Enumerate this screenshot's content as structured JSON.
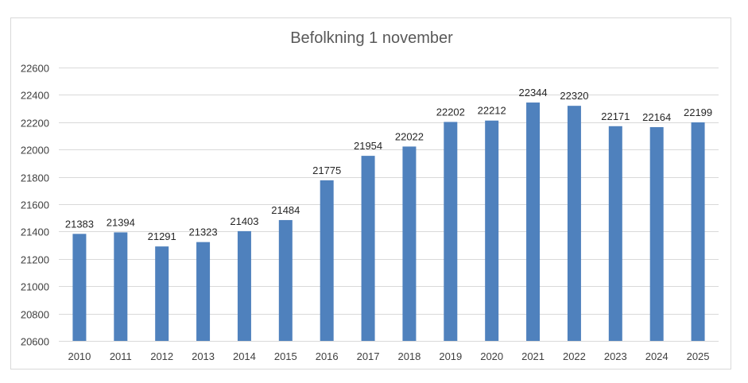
{
  "chart_data": {
    "type": "bar",
    "title": "Befolkning 1 november",
    "xlabel": "",
    "ylabel": "",
    "categories": [
      "2010",
      "2011",
      "2012",
      "2013",
      "2014",
      "2015",
      "2016",
      "2017",
      "2018",
      "2019",
      "2020",
      "2021",
      "2022",
      "2023",
      "2024",
      "2025"
    ],
    "values": [
      21383,
      21394,
      21291,
      21323,
      21403,
      21484,
      21775,
      21954,
      22022,
      22202,
      22212,
      22344,
      22320,
      22171,
      22164,
      22199
    ],
    "ylim": [
      20600,
      22600
    ],
    "yticks": [
      20600,
      20800,
      21000,
      21200,
      21400,
      21600,
      21800,
      22000,
      22200,
      22400,
      22600
    ],
    "grid": true,
    "legend": "none",
    "bar_color": "#4f81bd",
    "grid_color": "#d9d9d9"
  }
}
